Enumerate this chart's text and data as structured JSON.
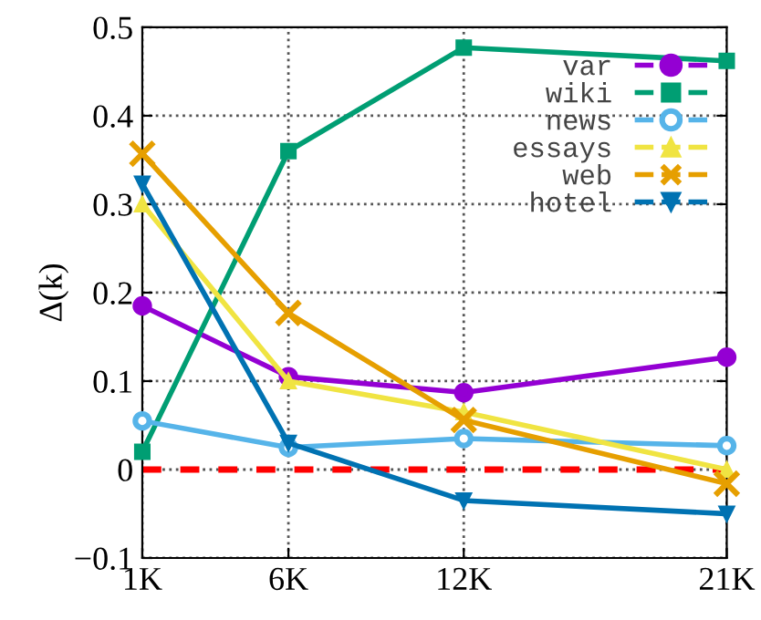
{
  "chart_data": {
    "type": "line",
    "ylabel": "Δ(k)",
    "x": [
      1,
      6,
      12,
      21
    ],
    "series": [
      {
        "name": "var",
        "color": "#9400d3",
        "marker": "circle",
        "values": [
          0.185,
          0.105,
          0.087,
          0.127
        ]
      },
      {
        "name": "wiki",
        "color": "#009e73",
        "marker": "square",
        "values": [
          0.02,
          0.36,
          0.477,
          0.462
        ]
      },
      {
        "name": "news",
        "color": "#56b4e9",
        "marker": "open_circle",
        "values": [
          0.055,
          0.025,
          0.035,
          0.027
        ]
      },
      {
        "name": "essays",
        "color": "#f0e442",
        "marker": "triangle",
        "values": [
          0.3,
          0.1,
          0.065,
          0.0
        ]
      },
      {
        "name": "web",
        "color": "#e69f00",
        "marker": "cross",
        "values": [
          0.357,
          0.177,
          0.056,
          -0.016
        ]
      },
      {
        "name": "hotel",
        "color": "#0072b2",
        "marker": "triangle_down",
        "values": [
          0.323,
          0.03,
          -0.035,
          -0.05
        ]
      }
    ],
    "xlim": [
      1,
      21
    ],
    "xticks": [
      {
        "value": 1,
        "label": "1K"
      },
      {
        "value": 6,
        "label": "6K"
      },
      {
        "value": 12,
        "label": "12K"
      },
      {
        "value": 21,
        "label": "21K"
      }
    ],
    "ylim": [
      -0.1,
      0.5
    ],
    "yticks": [
      {
        "value": -0.1,
        "label": "−0.1"
      },
      0,
      0.1,
      0.2,
      0.3,
      0.4,
      0.5
    ],
    "ref_lines": [
      {
        "axis": "y",
        "value": 0,
        "color": "#ff0000",
        "line_style": "dashed"
      }
    ],
    "grid": true,
    "legend": "top right",
    "line_style": "solid"
  }
}
